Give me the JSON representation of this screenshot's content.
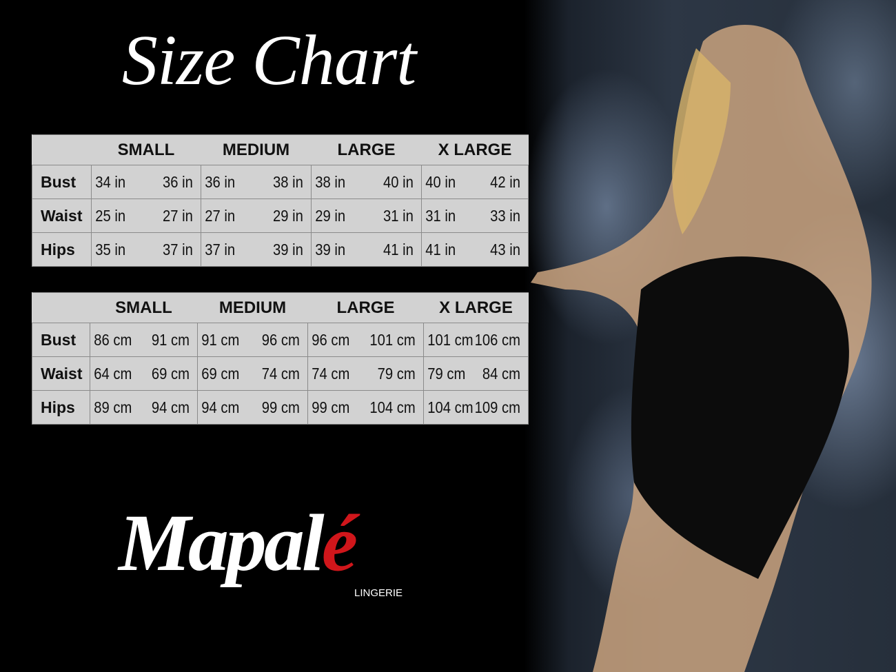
{
  "title": "Size Chart",
  "sizes": [
    "SMALL",
    "MEDIUM",
    "LARGE",
    "X LARGE"
  ],
  "tables": [
    {
      "unit": "in",
      "rows": [
        {
          "label": "Bust",
          "values": [
            "34 in",
            "36 in",
            "36 in",
            "38 in",
            "38 in",
            "40 in",
            "40 in",
            "42 in"
          ]
        },
        {
          "label": "Waist",
          "values": [
            "25 in",
            "27 in",
            "27 in",
            "29 in",
            "29 in",
            "31 in",
            "31 in",
            "33 in"
          ]
        },
        {
          "label": "Hips",
          "values": [
            "35 in",
            "37 in",
            "37 in",
            "39 in",
            "39 in",
            "41 in",
            "41 in",
            "43 in"
          ]
        }
      ]
    },
    {
      "unit": "cm",
      "rows": [
        {
          "label": "Bust",
          "values": [
            "86 cm",
            "91 cm",
            "91 cm",
            "96 cm",
            "96 cm",
            "101 cm",
            "101 cm",
            "106 cm"
          ]
        },
        {
          "label": "Waist",
          "values": [
            "64 cm",
            "69 cm",
            "69 cm",
            "74 cm",
            "74 cm",
            "79  cm",
            "79 cm",
            "84 cm"
          ]
        },
        {
          "label": "Hips",
          "values": [
            "89 cm",
            "94 cm",
            "94 cm",
            "99 cm",
            "99 cm",
            "104 cm",
            "104 cm",
            "109 cm"
          ]
        }
      ]
    }
  ],
  "logo": {
    "main": "Mapal",
    "accent": "é",
    "sub": "LINGERIE",
    "accent_color": "#d0161b"
  }
}
